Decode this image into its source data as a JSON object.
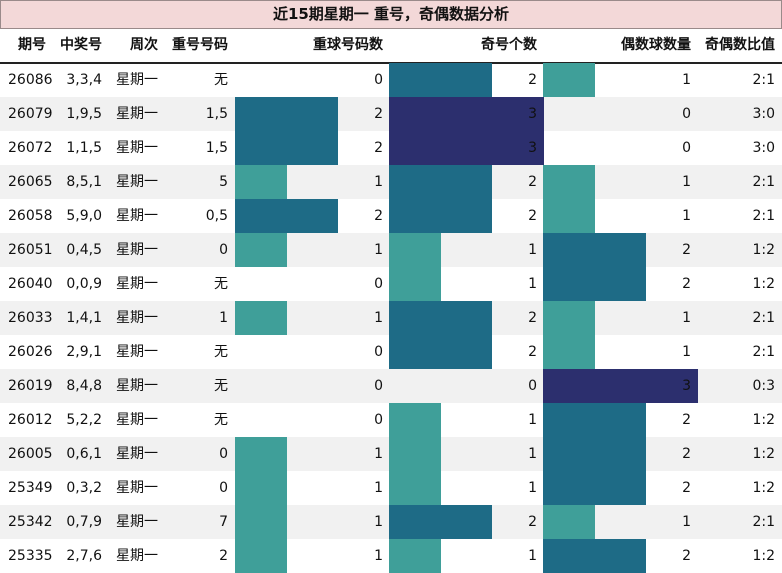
{
  "title": "近15期星期一 重号，奇偶数据分析",
  "headers": {
    "period": "期号",
    "numbers": "中奖号",
    "weekday": "周次",
    "repeat_numbers": "重号号码",
    "repeat_count": "重球号码数",
    "odd_count": "奇号个数",
    "even_count": "偶数球数量",
    "ratio": "奇偶数比值"
  },
  "colors": {
    "level_0": "#ffffff",
    "level_1": "#3f9f99",
    "level_2": "#1e6b86",
    "level_3": "#2c2f6e",
    "title_bg": "#f3d8d8",
    "row_alt": "#f1f1f1"
  },
  "rows": [
    {
      "period": "26086",
      "numbers": "3,3,4",
      "weekday": "星期一",
      "repeat_numbers": "无",
      "repeat_count": 0,
      "odd_count": 2,
      "even_count": 1,
      "ratio": "2:1"
    },
    {
      "period": "26079",
      "numbers": "1,9,5",
      "weekday": "星期一",
      "repeat_numbers": "1,5",
      "repeat_count": 2,
      "odd_count": 3,
      "even_count": 0,
      "ratio": "3:0"
    },
    {
      "period": "26072",
      "numbers": "1,1,5",
      "weekday": "星期一",
      "repeat_numbers": "1,5",
      "repeat_count": 2,
      "odd_count": 3,
      "even_count": 0,
      "ratio": "3:0"
    },
    {
      "period": "26065",
      "numbers": "8,5,1",
      "weekday": "星期一",
      "repeat_numbers": "5",
      "repeat_count": 1,
      "odd_count": 2,
      "even_count": 1,
      "ratio": "2:1"
    },
    {
      "period": "26058",
      "numbers": "5,9,0",
      "weekday": "星期一",
      "repeat_numbers": "0,5",
      "repeat_count": 2,
      "odd_count": 2,
      "even_count": 1,
      "ratio": "2:1"
    },
    {
      "period": "26051",
      "numbers": "0,4,5",
      "weekday": "星期一",
      "repeat_numbers": "0",
      "repeat_count": 1,
      "odd_count": 1,
      "even_count": 2,
      "ratio": "1:2"
    },
    {
      "period": "26040",
      "numbers": "0,0,9",
      "weekday": "星期一",
      "repeat_numbers": "无",
      "repeat_count": 0,
      "odd_count": 1,
      "even_count": 2,
      "ratio": "1:2"
    },
    {
      "period": "26033",
      "numbers": "1,4,1",
      "weekday": "星期一",
      "repeat_numbers": "1",
      "repeat_count": 1,
      "odd_count": 2,
      "even_count": 1,
      "ratio": "2:1"
    },
    {
      "period": "26026",
      "numbers": "2,9,1",
      "weekday": "星期一",
      "repeat_numbers": "无",
      "repeat_count": 0,
      "odd_count": 2,
      "even_count": 1,
      "ratio": "2:1"
    },
    {
      "period": "26019",
      "numbers": "8,4,8",
      "weekday": "星期一",
      "repeat_numbers": "无",
      "repeat_count": 0,
      "odd_count": 0,
      "even_count": 3,
      "ratio": "0:3"
    },
    {
      "period": "26012",
      "numbers": "5,2,2",
      "weekday": "星期一",
      "repeat_numbers": "无",
      "repeat_count": 0,
      "odd_count": 1,
      "even_count": 2,
      "ratio": "1:2"
    },
    {
      "period": "26005",
      "numbers": "0,6,1",
      "weekday": "星期一",
      "repeat_numbers": "0",
      "repeat_count": 1,
      "odd_count": 1,
      "even_count": 2,
      "ratio": "1:2"
    },
    {
      "period": "25349",
      "numbers": "0,3,2",
      "weekday": "星期一",
      "repeat_numbers": "0",
      "repeat_count": 1,
      "odd_count": 1,
      "even_count": 2,
      "ratio": "1:2"
    },
    {
      "period": "25342",
      "numbers": "0,7,9",
      "weekday": "星期一",
      "repeat_numbers": "7",
      "repeat_count": 1,
      "odd_count": 2,
      "even_count": 1,
      "ratio": "2:1"
    },
    {
      "period": "25335",
      "numbers": "2,7,6",
      "weekday": "星期一",
      "repeat_numbers": "2",
      "repeat_count": 1,
      "odd_count": 1,
      "even_count": 2,
      "ratio": "1:2"
    }
  ]
}
